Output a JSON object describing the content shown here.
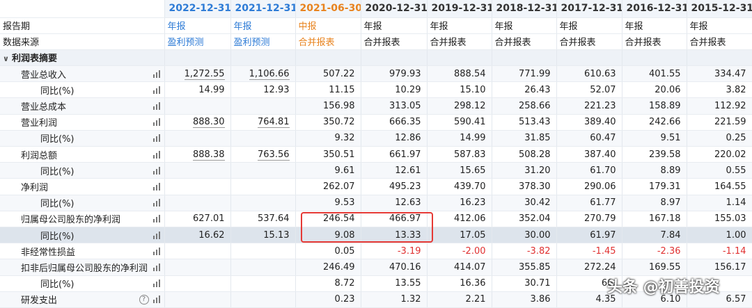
{
  "header": {
    "label": "",
    "periods": [
      {
        "label": "2022-12-31",
        "color": "blue"
      },
      {
        "label": "2021-12-31",
        "color": "blue"
      },
      {
        "label": "2021-06-30",
        "color": "orange"
      },
      {
        "label": "2020-12-31",
        "color": "plain"
      },
      {
        "label": "2019-12-31",
        "color": "plain"
      },
      {
        "label": "2018-12-31",
        "color": "plain"
      },
      {
        "label": "2017-12-31",
        "color": "plain"
      },
      {
        "label": "2016-12-31",
        "color": "plain"
      },
      {
        "label": "2015-12-31",
        "color": "plain"
      }
    ]
  },
  "meta_rows": [
    {
      "label": "报告期",
      "values": [
        "年报",
        "年报",
        "中报",
        "年报",
        "年报",
        "年报",
        "年报",
        "年报",
        "年报"
      ]
    },
    {
      "label": "数据来源",
      "values": [
        "盈利预测",
        "盈利预测",
        "合并报表",
        "合并报表",
        "合并报表",
        "合并报表",
        "合并报表",
        "合并报表",
        "合并报表"
      ]
    }
  ],
  "section": {
    "label": "利润表摘要",
    "chevron": "∨"
  },
  "rows": [
    {
      "label": "营业总收入",
      "level": 1,
      "values": [
        "1,272.55",
        "1,106.66",
        "507.22",
        "979.93",
        "888.54",
        "771.99",
        "610.63",
        "401.55",
        "334.47"
      ],
      "underline": [
        true,
        true
      ]
    },
    {
      "label": "同比(%)",
      "level": 2,
      "values": [
        "14.99",
        "12.93",
        "11.15",
        "10.29",
        "15.10",
        "26.43",
        "52.07",
        "20.06",
        "3.82"
      ]
    },
    {
      "label": "营业总成本",
      "level": 1,
      "values": [
        "",
        "",
        "156.98",
        "313.05",
        "298.12",
        "258.66",
        "221.23",
        "158.89",
        "112.92"
      ]
    },
    {
      "label": "营业利润",
      "level": 1,
      "values": [
        "888.30",
        "764.81",
        "350.72",
        "666.35",
        "590.41",
        "513.43",
        "389.40",
        "242.66",
        "221.59"
      ],
      "underline": [
        true,
        true
      ]
    },
    {
      "label": "同比(%)",
      "level": 2,
      "values": [
        "",
        "",
        "9.32",
        "12.86",
        "14.99",
        "31.85",
        "60.47",
        "9.51",
        "0.25"
      ]
    },
    {
      "label": "利润总额",
      "level": 1,
      "values": [
        "888.38",
        "763.56",
        "350.51",
        "661.97",
        "587.83",
        "508.28",
        "387.40",
        "239.58",
        "220.02"
      ],
      "underline": [
        true,
        true
      ]
    },
    {
      "label": "同比(%)",
      "level": 2,
      "values": [
        "",
        "",
        "9.61",
        "12.61",
        "15.65",
        "31.20",
        "61.70",
        "8.89",
        "0.55"
      ]
    },
    {
      "label": "净利润",
      "level": 1,
      "values": [
        "",
        "",
        "262.07",
        "495.23",
        "439.70",
        "378.30",
        "290.06",
        "179.31",
        "164.55"
      ]
    },
    {
      "label": "同比(%)",
      "level": 2,
      "values": [
        "",
        "",
        "9.53",
        "12.63",
        "16.23",
        "30.42",
        "61.77",
        "8.97",
        "1.14"
      ]
    },
    {
      "label": "归属母公司股东的净利润",
      "level": 1,
      "values": [
        "627.01",
        "537.64",
        "246.54",
        "466.97",
        "412.06",
        "352.04",
        "270.79",
        "167.18",
        "155.03"
      ]
    },
    {
      "label": "同比(%)",
      "level": 2,
      "values": [
        "16.62",
        "15.13",
        "9.08",
        "13.33",
        "17.05",
        "30.00",
        "61.97",
        "7.84",
        "1.00"
      ],
      "highlight": true
    },
    {
      "label": "非经常性损益",
      "level": 1,
      "values": [
        "",
        "",
        "0.05",
        "-3.19",
        "-2.00",
        "-3.82",
        "-1.45",
        "-2.36",
        "-1.14"
      ]
    },
    {
      "label": "扣非后归属母公司股东的净利润",
      "level": 1,
      "values": [
        "",
        "",
        "246.49",
        "470.16",
        "414.07",
        "355.85",
        "272.24",
        "169.55",
        "156.17"
      ]
    },
    {
      "label": "同比(%)",
      "level": 2,
      "values": [
        "",
        "",
        "8.72",
        "13.55",
        "16.36",
        "30.71",
        "60.",
        "",
        ""
      ]
    },
    {
      "label": "研发支出",
      "level": 1,
      "values": [
        "",
        "",
        "0.23",
        "1.32",
        "2.21",
        "3.86",
        "4.35",
        "6.10",
        "6.57"
      ],
      "help": true
    }
  ],
  "watermark": "头条 @初善投资"
}
